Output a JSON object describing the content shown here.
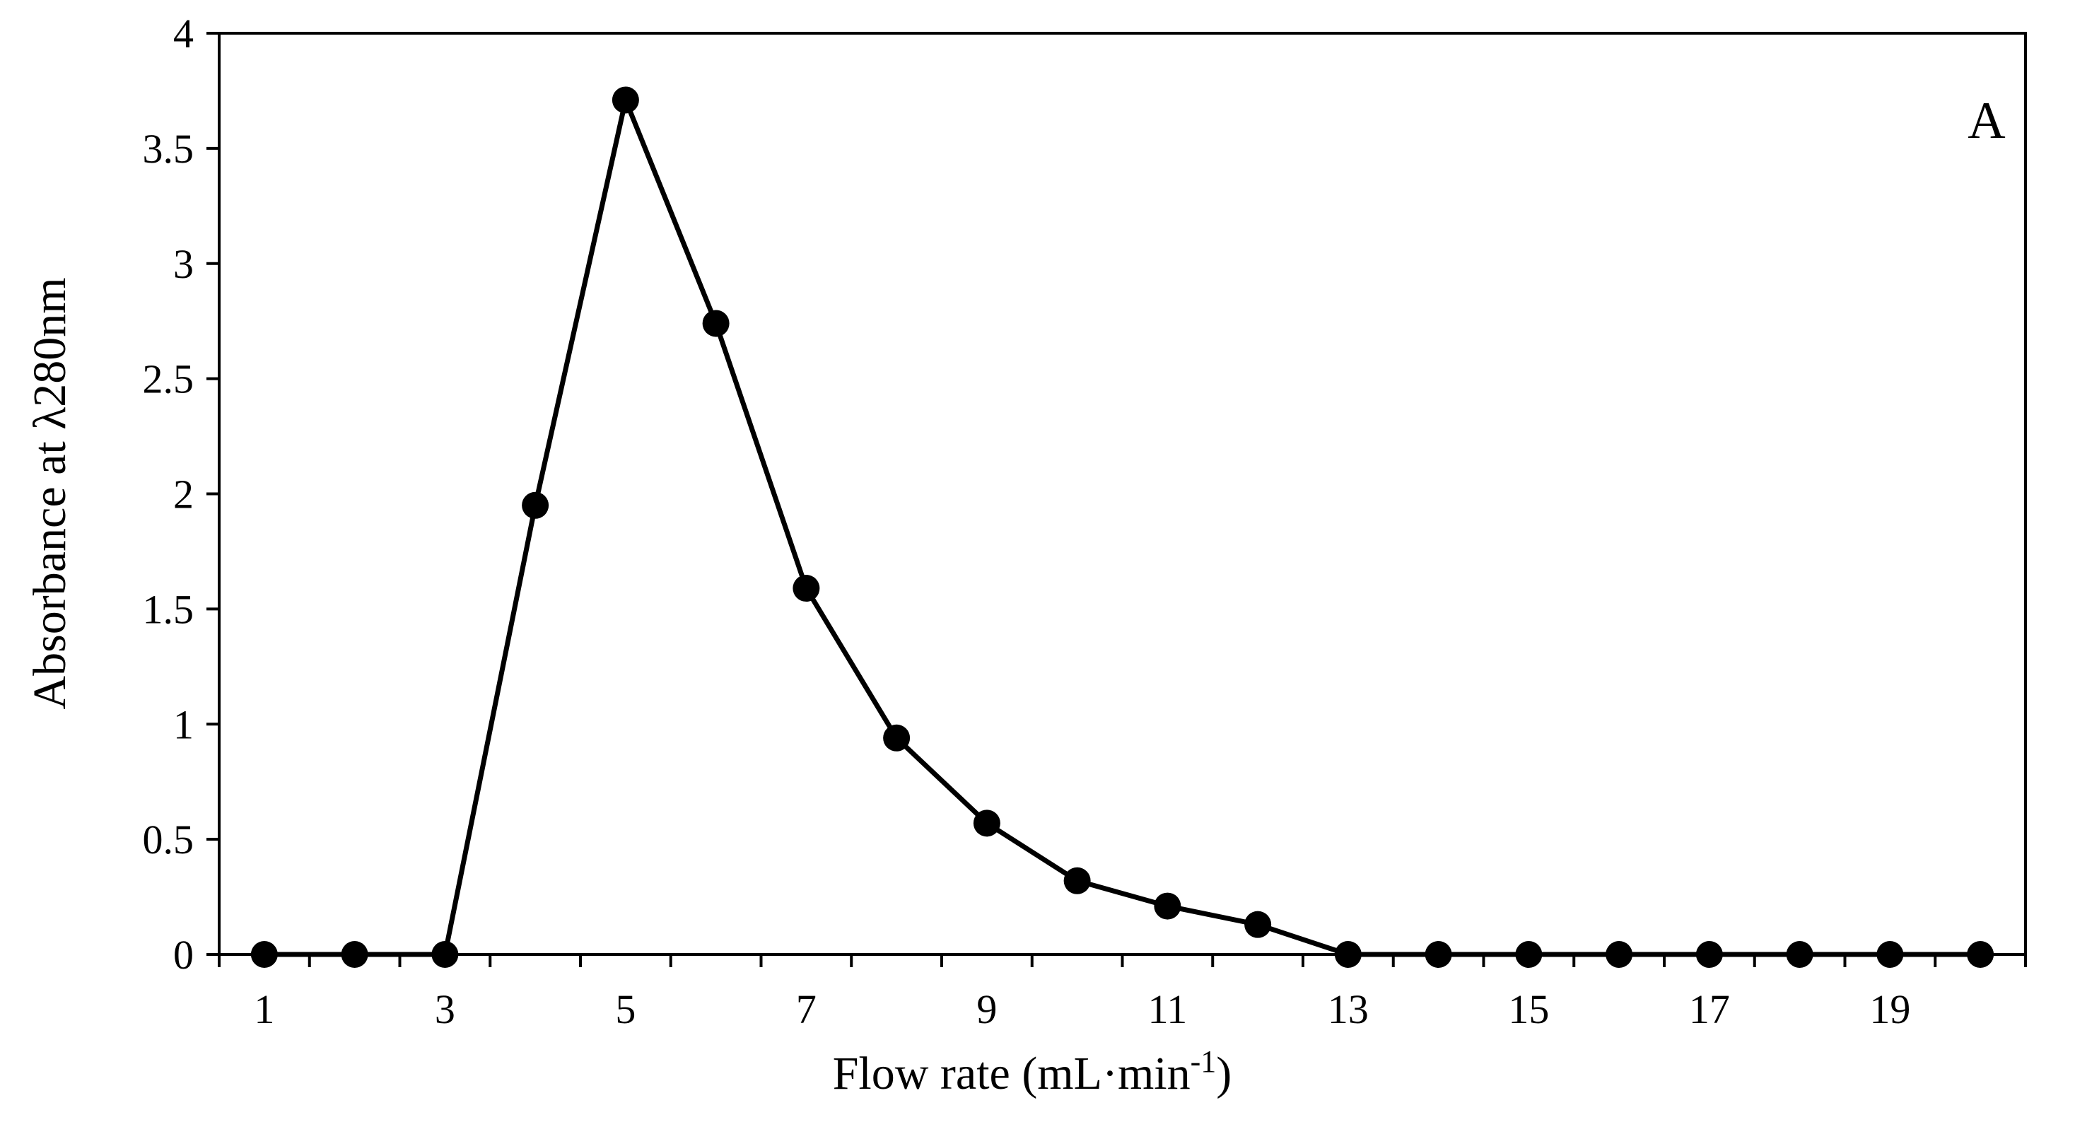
{
  "chart_data": {
    "type": "line",
    "panel_label": "A",
    "xlabel": "Flow rate (mL·min",
    "xlabel_sup": "-1",
    "xlabel_close": ")",
    "ylabel": "Absorbance at  λ280nm",
    "xlim": [
      0.5,
      20.5
    ],
    "ylim": [
      0,
      4
    ],
    "x_ticks": [
      1,
      3,
      5,
      7,
      9,
      11,
      13,
      15,
      17,
      19
    ],
    "x_tick_labels": [
      "1",
      "3",
      "5",
      "7",
      "9",
      "11",
      "13",
      "15",
      "17",
      "19"
    ],
    "y_ticks": [
      0,
      0.5,
      1,
      1.5,
      2,
      2.5,
      3,
      3.5,
      4
    ],
    "y_tick_labels": [
      "0",
      "0.5",
      "1",
      "1.5",
      "2",
      "2.5",
      "3",
      "3.5",
      "4"
    ],
    "grid": false,
    "line_color": "#000000",
    "marker_color": "#000000",
    "series": [
      {
        "x": [
          1,
          2,
          3,
          4,
          5,
          6,
          7,
          8,
          9,
          10,
          11,
          12,
          13,
          14,
          15,
          16,
          17,
          18,
          19,
          20
        ],
        "values": [
          0,
          0,
          0,
          1.95,
          3.71,
          2.74,
          1.59,
          0.94,
          0.57,
          0.32,
          0.21,
          0.13,
          0,
          0,
          0,
          0,
          0,
          0,
          0,
          0
        ]
      }
    ]
  }
}
